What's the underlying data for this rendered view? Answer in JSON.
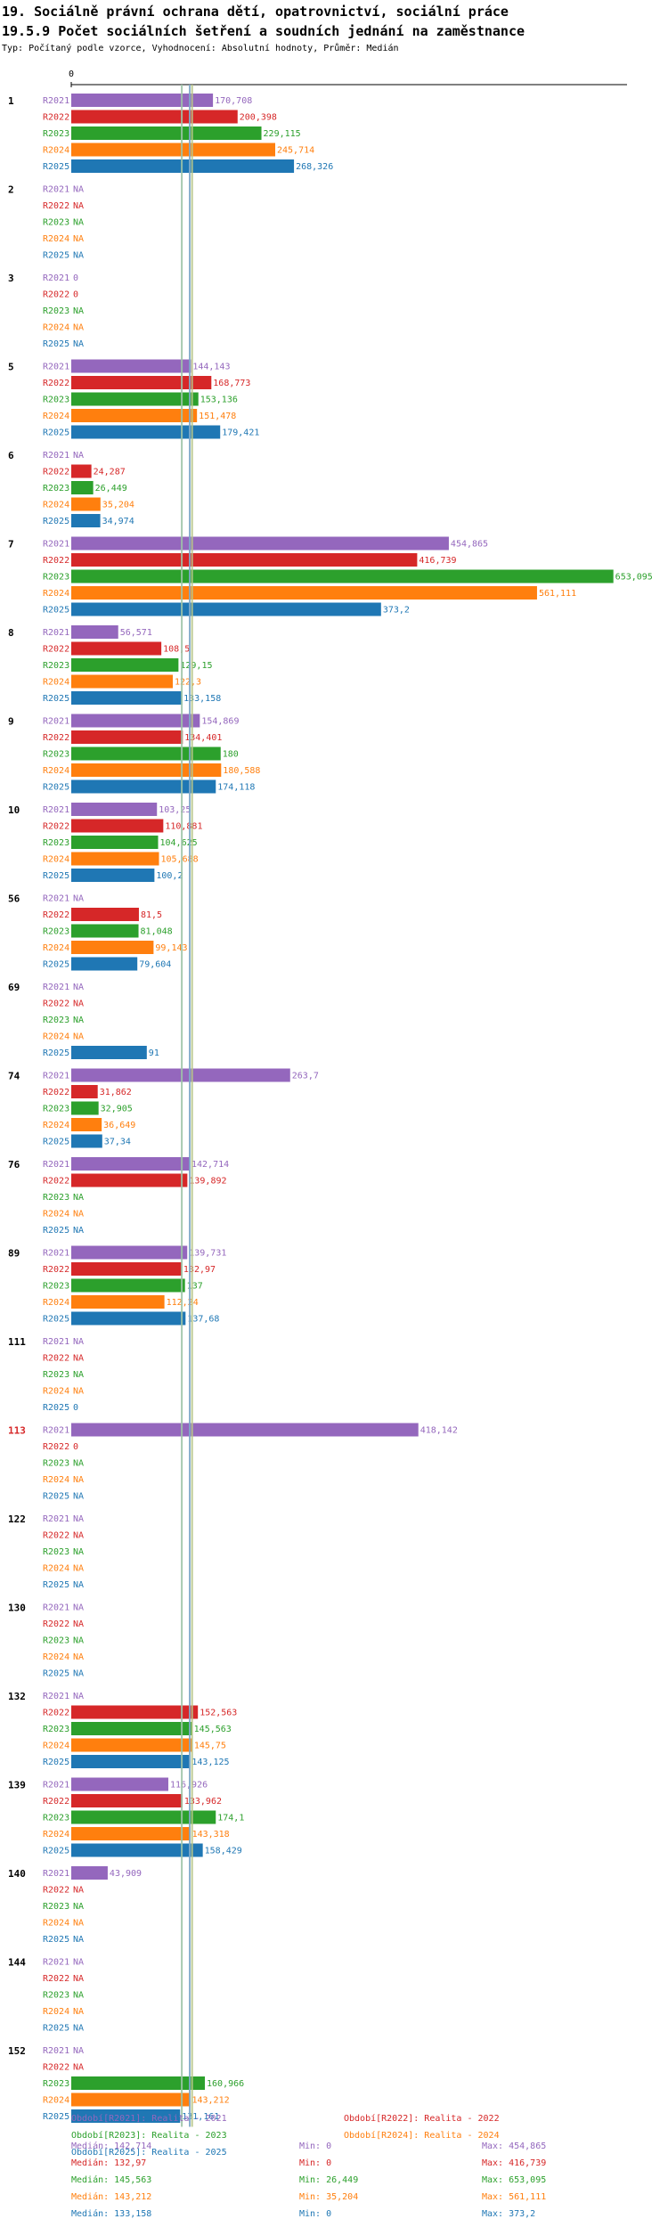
{
  "title_line1": "19. Sociálně právní ochrana dětí, opatrovnictví, sociální práce",
  "title_line2": "19.5.9 Počet sociálních šetření a soudních jednání na zaměstnance",
  "subtitle": "Typ: Počítaný podle vzorce, Vyhodnocení: Absolutní hodnoty, Průměr: Medián",
  "colors": {
    "R2021": "#9467bd",
    "R2022": "#d62728",
    "R2023": "#2ca02c",
    "R2024": "#ff7f0e",
    "R2025": "#1f77b4",
    "median_lines": [
      "#9ec4a8",
      "#7fa9c9",
      "#b7c68a"
    ],
    "highlight_group": "#d62728"
  },
  "chart_data": {
    "type": "bar",
    "orientation": "horizontal",
    "x_axis_zero_label": "0",
    "xlim": [
      0,
      700
    ],
    "series_names": [
      "R2021",
      "R2022",
      "R2023",
      "R2024",
      "R2025"
    ],
    "median_markers": [
      133.158,
      142.714,
      145.563
    ],
    "groups": [
      {
        "id": "1",
        "highlight": false,
        "values": [
          170.708,
          200.398,
          229.115,
          245.714,
          268.326
        ],
        "labels": [
          "170,708",
          "200,398",
          "229,115",
          "245,714",
          "268,326"
        ]
      },
      {
        "id": "2",
        "highlight": false,
        "values": [
          null,
          null,
          null,
          null,
          null
        ],
        "labels": [
          "NA",
          "NA",
          "NA",
          "NA",
          "NA"
        ]
      },
      {
        "id": "3",
        "highlight": false,
        "values": [
          0,
          0,
          null,
          null,
          null
        ],
        "labels": [
          "0",
          "0",
          "NA",
          "NA",
          "NA"
        ]
      },
      {
        "id": "5",
        "highlight": false,
        "values": [
          144.143,
          168.773,
          153.136,
          151.478,
          179.421
        ],
        "labels": [
          "144,143",
          "168,773",
          "153,136",
          "151,478",
          "179,421"
        ]
      },
      {
        "id": "6",
        "highlight": false,
        "values": [
          null,
          24.287,
          26.449,
          35.204,
          34.974
        ],
        "labels": [
          "NA",
          "24,287",
          "26,449",
          "35,204",
          "34,974"
        ]
      },
      {
        "id": "7",
        "highlight": false,
        "values": [
          454.865,
          416.739,
          653.095,
          561.111,
          373.2
        ],
        "labels": [
          "454,865",
          "416,739",
          "653,095",
          "561,111",
          "373,2"
        ]
      },
      {
        "id": "8",
        "highlight": false,
        "values": [
          56.571,
          108.5,
          129.15,
          122.3,
          133.158
        ],
        "labels": [
          "56,571",
          "108,5",
          "129,15",
          "122,3",
          "133,158"
        ]
      },
      {
        "id": "9",
        "highlight": false,
        "values": [
          154.869,
          134.401,
          180,
          180.588,
          174.118
        ],
        "labels": [
          "154,869",
          "134,401",
          "180",
          "180,588",
          "174,118"
        ]
      },
      {
        "id": "10",
        "highlight": false,
        "values": [
          103.25,
          110.881,
          104.625,
          105.688,
          100.2
        ],
        "labels": [
          "103,25",
          "110,881",
          "104,625",
          "105,688",
          "100,2"
        ]
      },
      {
        "id": "56",
        "highlight": false,
        "values": [
          null,
          81.5,
          81.048,
          99.143,
          79.604
        ],
        "labels": [
          "NA",
          "81,5",
          "81,048",
          "99,143",
          "79,604"
        ]
      },
      {
        "id": "69",
        "highlight": false,
        "values": [
          null,
          null,
          null,
          null,
          91
        ],
        "labels": [
          "NA",
          "NA",
          "NA",
          "NA",
          "91"
        ]
      },
      {
        "id": "74",
        "highlight": false,
        "values": [
          263.7,
          31.862,
          32.905,
          36.649,
          37.34
        ],
        "labels": [
          "263,7",
          "31,862",
          "32,905",
          "36,649",
          "37,34"
        ]
      },
      {
        "id": "76",
        "highlight": false,
        "values": [
          142.714,
          139.892,
          null,
          null,
          null
        ],
        "labels": [
          "142,714",
          "139,892",
          "NA",
          "NA",
          "NA"
        ]
      },
      {
        "id": "89",
        "highlight": false,
        "values": [
          139.731,
          132.97,
          137,
          112.24,
          137.68
        ],
        "labels": [
          "139,731",
          "132,97",
          "137",
          "112,24",
          "137,68"
        ]
      },
      {
        "id": "111",
        "highlight": false,
        "values": [
          null,
          null,
          null,
          null,
          0
        ],
        "labels": [
          "NA",
          "NA",
          "NA",
          "NA",
          "0"
        ]
      },
      {
        "id": "113",
        "highlight": true,
        "values": [
          418.142,
          0,
          null,
          null,
          null
        ],
        "labels": [
          "418,142",
          "0",
          "NA",
          "NA",
          "NA"
        ]
      },
      {
        "id": "122",
        "highlight": false,
        "values": [
          null,
          null,
          null,
          null,
          null
        ],
        "labels": [
          "NA",
          "NA",
          "NA",
          "NA",
          "NA"
        ]
      },
      {
        "id": "130",
        "highlight": false,
        "values": [
          null,
          null,
          null,
          null,
          null
        ],
        "labels": [
          "NA",
          "NA",
          "NA",
          "NA",
          "NA"
        ]
      },
      {
        "id": "132",
        "highlight": false,
        "values": [
          null,
          152.563,
          145.563,
          145.75,
          143.125
        ],
        "labels": [
          "NA",
          "152,563",
          "145,563",
          "145,75",
          "143,125"
        ]
      },
      {
        "id": "139",
        "highlight": false,
        "values": [
          116.926,
          133.962,
          174.1,
          143.318,
          158.429
        ],
        "labels": [
          "116,926",
          "133,962",
          "174,1",
          "143,318",
          "158,429"
        ]
      },
      {
        "id": "140",
        "highlight": false,
        "values": [
          43.909,
          null,
          null,
          null,
          null
        ],
        "labels": [
          "43,909",
          "NA",
          "NA",
          "NA",
          "NA"
        ]
      },
      {
        "id": "144",
        "highlight": false,
        "values": [
          null,
          null,
          null,
          null,
          null
        ],
        "labels": [
          "NA",
          "NA",
          "NA",
          "NA",
          "NA"
        ]
      },
      {
        "id": "152",
        "highlight": false,
        "values": [
          null,
          null,
          160.966,
          143.212,
          131.161
        ],
        "labels": [
          "NA",
          "NA",
          "160,966",
          "143,212",
          "131,161"
        ]
      }
    ]
  },
  "legend": {
    "items": [
      {
        "series": "R2021",
        "text": "Období[R2021]: Realita - 2021"
      },
      {
        "series": "R2022",
        "text": "Období[R2022]: Realita - 2022"
      },
      {
        "series": "R2023",
        "text": "Období[R2023]: Realita - 2023"
      },
      {
        "series": "R2024",
        "text": "Období[R2024]: Realita - 2024"
      },
      {
        "series": "R2025",
        "text": "Období[R2025]: Realita - 2025"
      }
    ],
    "stats": [
      {
        "series": "R2021",
        "median": "Medián: 142,714",
        "min": "Min: 0",
        "max": "Max: 454,865"
      },
      {
        "series": "R2022",
        "median": "Medián: 132,97",
        "min": "Min: 0",
        "max": "Max: 416,739"
      },
      {
        "series": "R2023",
        "median": "Medián: 145,563",
        "min": "Min: 26,449",
        "max": "Max: 653,095"
      },
      {
        "series": "R2024",
        "median": "Medián: 143,212",
        "min": "Min: 35,204",
        "max": "Max: 561,111"
      },
      {
        "series": "R2025",
        "median": "Medián: 133,158",
        "min": "Min: 0",
        "max": "Max: 373,2"
      }
    ]
  }
}
